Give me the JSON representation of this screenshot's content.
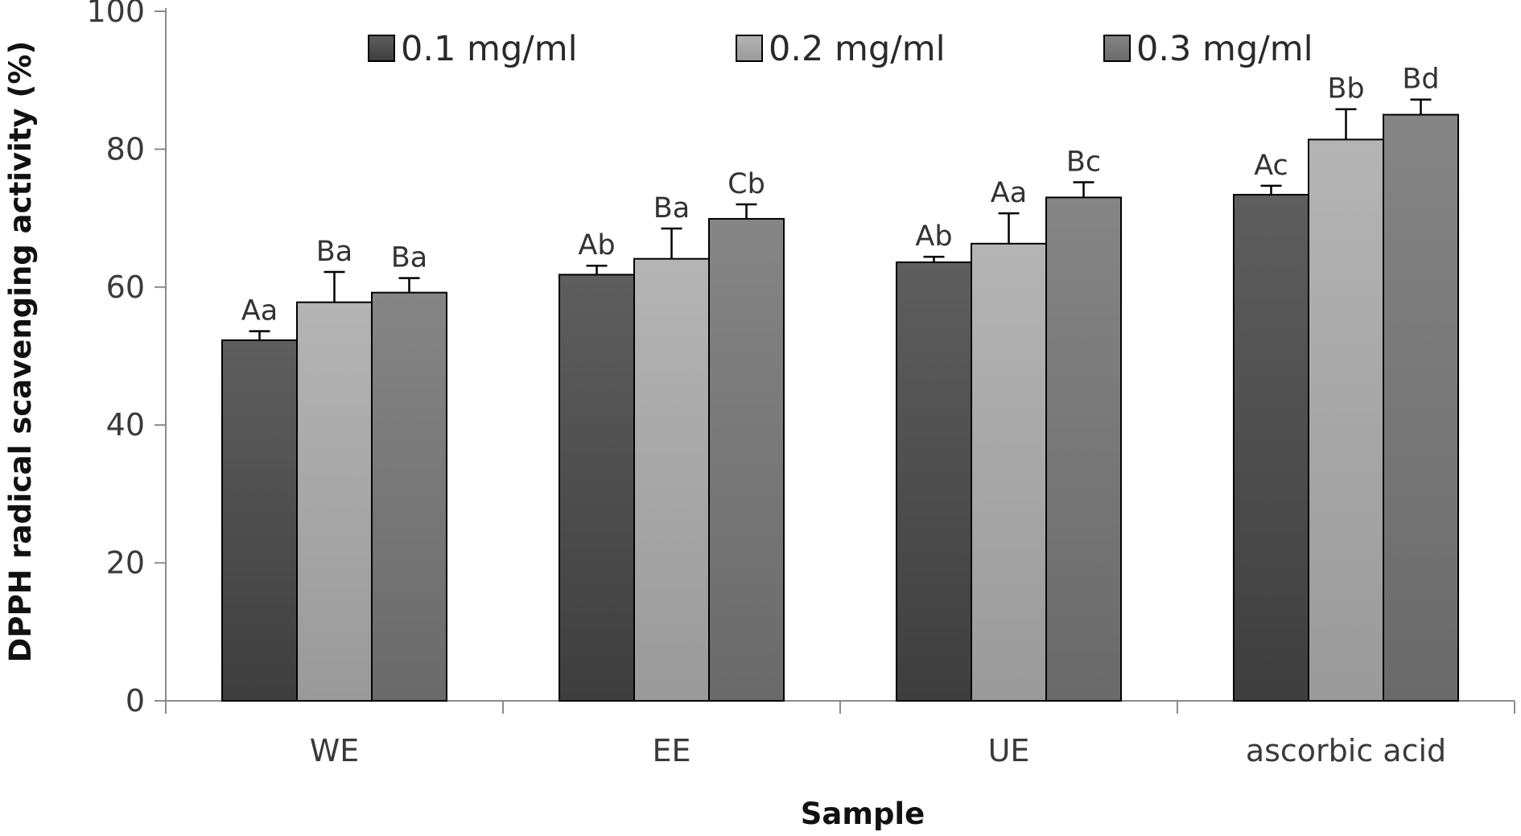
{
  "chart_data": {
    "type": "bar",
    "title": "",
    "xlabel": "Sample",
    "ylabel": "DPPH  radical scavenging activity (%)",
    "ylim": [
      0,
      100
    ],
    "yticks": [
      0,
      20,
      40,
      60,
      80,
      100
    ],
    "categories": [
      "WE",
      "EE",
      "UE",
      "ascorbic acid"
    ],
    "series": [
      {
        "name": "0.1 mg/ml",
        "color": "#4a4a4a",
        "values": [
          52.3,
          61.8,
          63.6,
          73.4
        ],
        "errors": [
          1.3,
          1.3,
          0.8,
          1.3
        ],
        "labels": [
          "Aa",
          "Ab",
          "Ab",
          "Ac"
        ]
      },
      {
        "name": "0.2 mg/ml",
        "color": "#a8a8a8",
        "values": [
          57.8,
          64.1,
          66.3,
          81.4
        ],
        "errors": [
          4.4,
          4.4,
          4.4,
          4.4
        ],
        "labels": [
          "Ba",
          "Ba",
          "Aa",
          "Bb"
        ]
      },
      {
        "name": "0.3 mg/ml",
        "color": "#7a7a7a",
        "values": [
          59.2,
          69.9,
          73.0,
          85.0
        ],
        "errors": [
          2.1,
          2.1,
          2.2,
          2.2
        ],
        "labels": [
          "Ba",
          "Cb",
          "Bc",
          "Bd"
        ]
      }
    ],
    "grid": false,
    "legend_position": "top"
  }
}
